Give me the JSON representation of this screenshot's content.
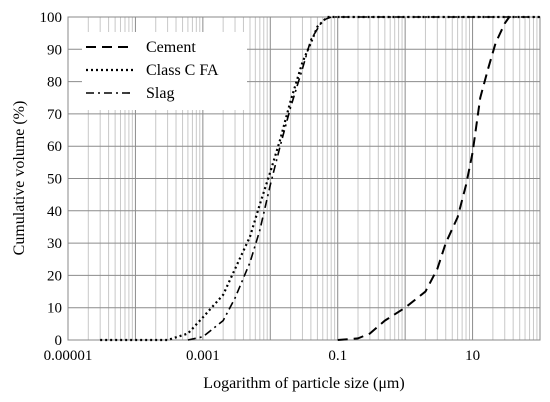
{
  "chart_data": {
    "type": "line",
    "title": "",
    "xlabel": "Logarithm of particle size (μm)",
    "ylabel": "Cumulative volume (%)",
    "x_scale": "log",
    "xlim": [
      1e-05,
      100
    ],
    "ylim": [
      0,
      100
    ],
    "x_tick_labels": [
      "0.00001",
      "0.001",
      "0.1",
      "10"
    ],
    "x_tick_values": [
      1e-05,
      0.001,
      0.1,
      10
    ],
    "y_tick_labels": [
      "0",
      "10",
      "20",
      "30",
      "40",
      "50",
      "60",
      "70",
      "80",
      "90",
      "100"
    ],
    "grid": "on",
    "legend_position": "top-left",
    "series": [
      {
        "name": "Cement",
        "line_style": "dashed",
        "points": [
          [
            0.1,
            0
          ],
          [
            0.2,
            0.5
          ],
          [
            0.3,
            2
          ],
          [
            0.5,
            6
          ],
          [
            1,
            10
          ],
          [
            2,
            15
          ],
          [
            3,
            22
          ],
          [
            4,
            30
          ],
          [
            6,
            38
          ],
          [
            8,
            48
          ],
          [
            10,
            58
          ],
          [
            13,
            75
          ],
          [
            17,
            84
          ],
          [
            22,
            92
          ],
          [
            30,
            98
          ],
          [
            35,
            100
          ]
        ]
      },
      {
        "name": "Class C FA",
        "line_style": "dotted",
        "points": [
          [
            3e-05,
            0
          ],
          [
            0.0003,
            0
          ],
          [
            0.0006,
            2
          ],
          [
            0.001,
            7
          ],
          [
            0.002,
            14
          ],
          [
            0.003,
            22
          ],
          [
            0.005,
            32
          ],
          [
            0.007,
            42
          ],
          [
            0.01,
            52
          ],
          [
            0.014,
            62
          ],
          [
            0.02,
            74
          ],
          [
            0.03,
            86
          ],
          [
            0.04,
            92
          ],
          [
            0.05,
            97
          ],
          [
            0.07,
            100
          ],
          [
            100,
            100
          ]
        ]
      },
      {
        "name": "Slag",
        "line_style": "dashdot",
        "points": [
          [
            0.0006,
            0
          ],
          [
            0.001,
            1
          ],
          [
            0.002,
            6
          ],
          [
            0.003,
            13
          ],
          [
            0.005,
            24
          ],
          [
            0.007,
            34
          ],
          [
            0.01,
            48
          ],
          [
            0.014,
            60
          ],
          [
            0.02,
            72
          ],
          [
            0.03,
            84
          ],
          [
            0.04,
            93
          ],
          [
            0.06,
            99
          ],
          [
            0.08,
            100
          ],
          [
            100,
            100
          ]
        ]
      }
    ]
  }
}
